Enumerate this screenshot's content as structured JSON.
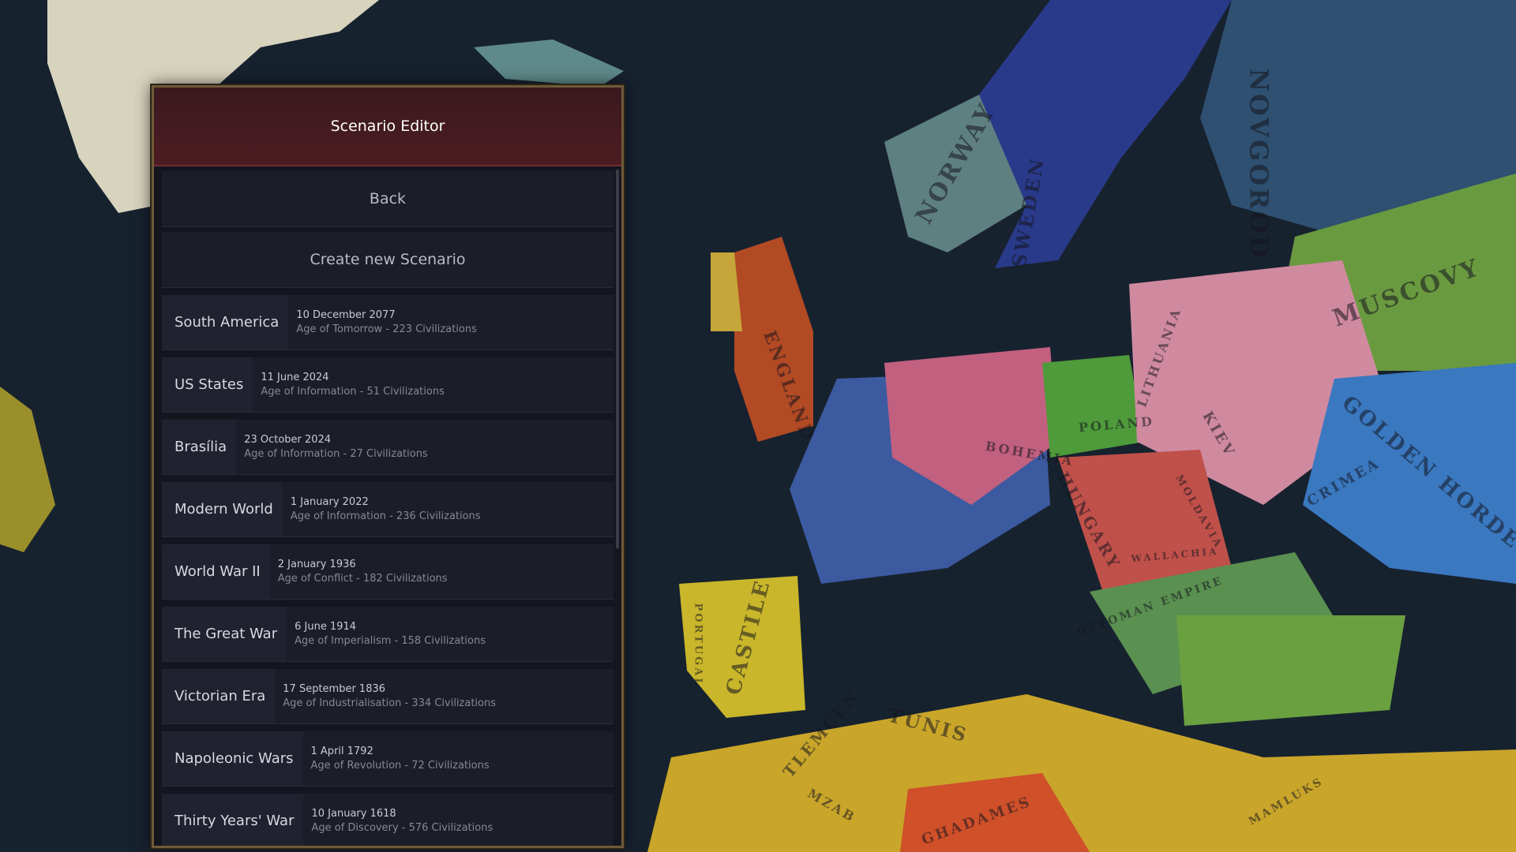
{
  "panel": {
    "title": "Scenario Editor",
    "back": "Back",
    "create": "Create new Scenario",
    "scenarios": [
      {
        "name": "South America",
        "date": "10 December 2077",
        "details": "Age of Tomorrow - 223 Civilizations"
      },
      {
        "name": "US States",
        "date": "11 June 2024",
        "details": "Age of Information - 51 Civilizations"
      },
      {
        "name": "Brasília",
        "date": "23 October 2024",
        "details": "Age of Information - 27 Civilizations"
      },
      {
        "name": "Modern World",
        "date": "1 January 2022",
        "details": "Age of Information - 236 Civilizations"
      },
      {
        "name": "World War II",
        "date": "2 January 1936",
        "details": "Age of Conflict - 182 Civilizations"
      },
      {
        "name": "The Great War",
        "date": "6 June 1914",
        "details": "Age of Imperialism - 158 Civilizations"
      },
      {
        "name": "Victorian Era",
        "date": "17 September 1836",
        "details": "Age of Industrialisation - 334 Civilizations"
      },
      {
        "name": "Napoleonic Wars",
        "date": "1 April 1792",
        "details": "Age of Revolution - 72 Civilizations"
      },
      {
        "name": "Thirty Years' War",
        "date": "10 January 1618",
        "details": "Age of Discovery - 576 Civilizations"
      }
    ]
  },
  "map": {
    "labels": [
      "NORWAY",
      "SWEDEN",
      "NOVGOROD",
      "MUSCOVY",
      "ENGLAND",
      "POLAND",
      "LITHUANIA",
      "KIEV",
      "BOHEMIA",
      "HUNGARY",
      "GOLDEN HORDE",
      "CRIMEA",
      "CASTILE",
      "PORTUGAL",
      "TUNIS",
      "TLEMCEN",
      "OTTOMAN EMPIRE",
      "WALLACHIA",
      "MOLDAVIA",
      "GHADAMES",
      "MZAB",
      "MAMLUKS"
    ]
  }
}
